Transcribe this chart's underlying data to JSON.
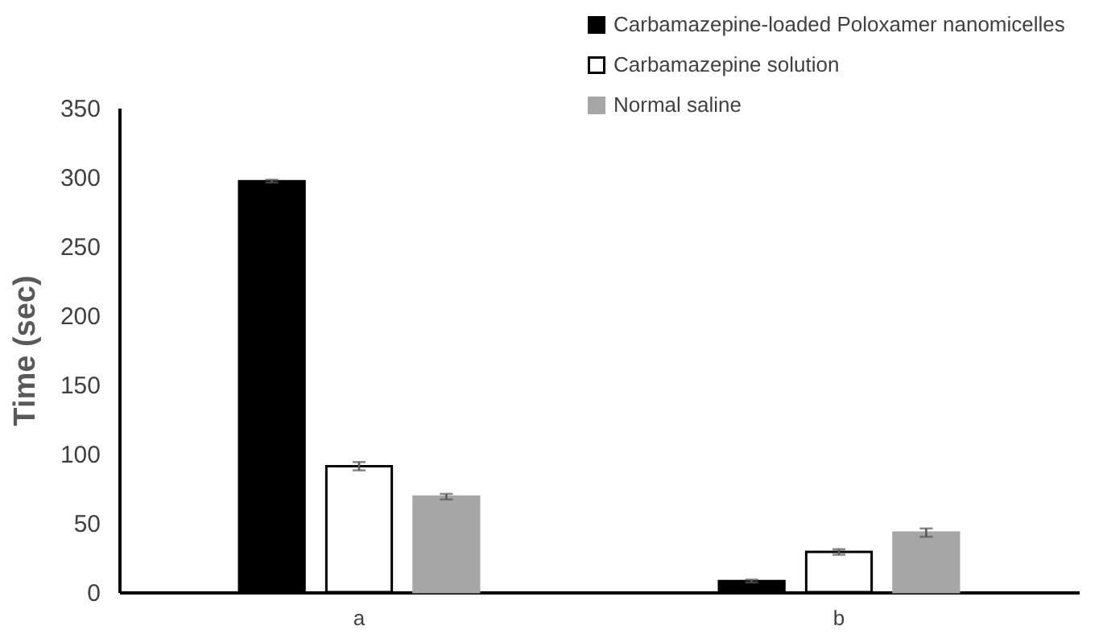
{
  "chart_data": {
    "type": "bar",
    "ylabel": "Time (sec)",
    "categories": [
      "a",
      "b"
    ],
    "series": [
      {
        "name": "Carbamazepine-loaded Poloxamer nanomicelles",
        "color": "#000000",
        "values": [
          297,
          8
        ],
        "errors": [
          1,
          1
        ]
      },
      {
        "name": "Carbamazepine solution",
        "color": "#ffffff",
        "values": [
          91,
          29
        ],
        "errors": [
          3,
          2
        ]
      },
      {
        "name": "Normal saline",
        "color": "#a6a6a6",
        "values": [
          69,
          43
        ],
        "errors": [
          2,
          3
        ]
      }
    ],
    "ylim": [
      0,
      350
    ],
    "yticks": [
      0,
      50,
      100,
      150,
      200,
      250,
      300,
      350
    ],
    "grid": false,
    "legend": "top right"
  }
}
